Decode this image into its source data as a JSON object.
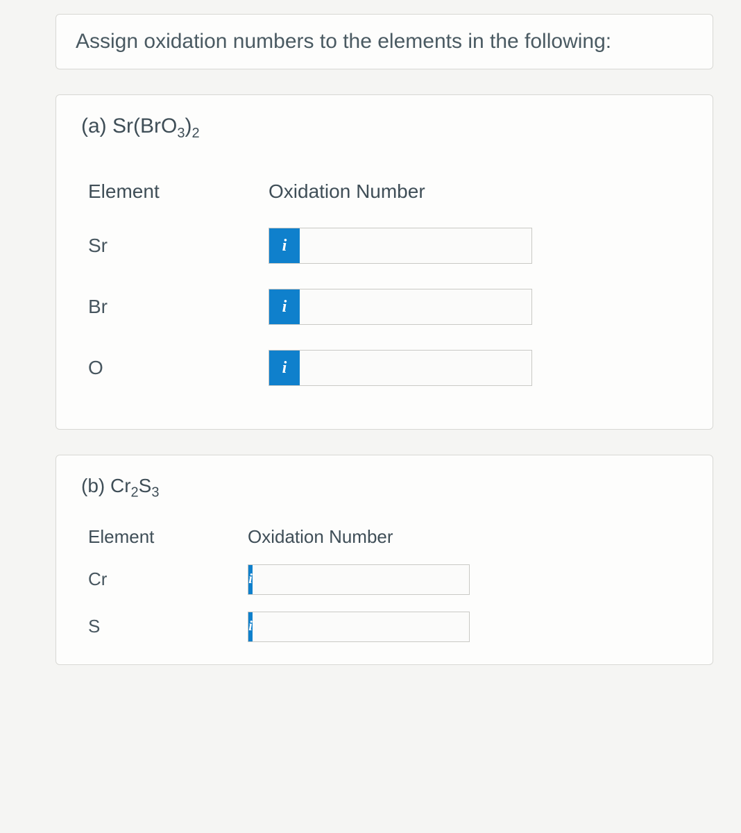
{
  "prompt": "Assign oxidation numbers to the elements in the following:",
  "parts": [
    {
      "label_html": "(a) Sr(BrO<sub>3</sub>)<sub>2</sub>",
      "headers": {
        "element": "Element",
        "oxnum": "Oxidation Number"
      },
      "rows": [
        {
          "element": "Sr",
          "value": ""
        },
        {
          "element": "Br",
          "value": ""
        },
        {
          "element": "O",
          "value": ""
        }
      ]
    },
    {
      "label_html": "(b) Cr<sub>2</sub>S<sub>3</sub>",
      "headers": {
        "element": "Element",
        "oxnum": "Oxidation Number"
      },
      "rows": [
        {
          "element": "Cr",
          "value": ""
        },
        {
          "element": "S",
          "value": ""
        }
      ]
    }
  ],
  "icon_label": "i"
}
